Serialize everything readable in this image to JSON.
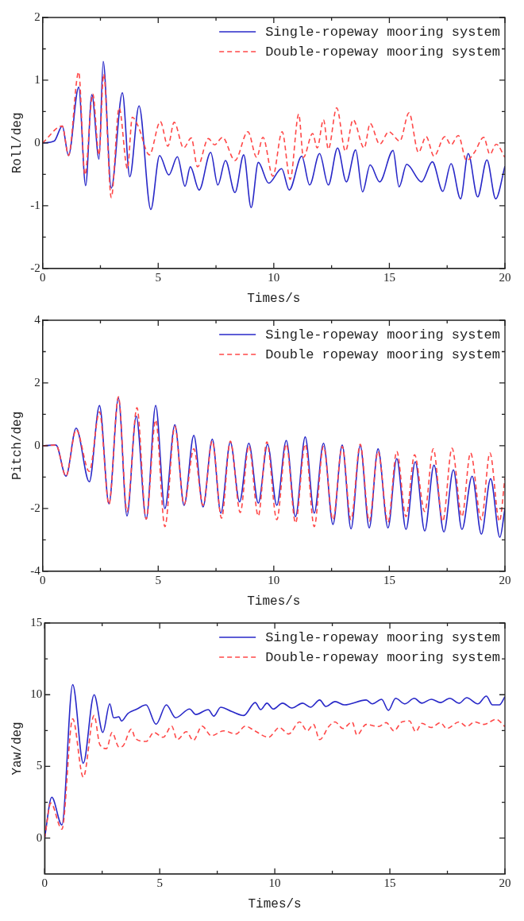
{
  "chart_data": [
    {
      "type": "line",
      "xlabel": "Times/s",
      "ylabel": "Roll/deg",
      "xlim": [
        0,
        20
      ],
      "xticks": [
        0,
        {
          "value": 2.5,
          "label": null
        },
        5,
        {
          "value": 7.5,
          "label": null
        },
        10,
        {
          "value": 12.5,
          "label": null
        },
        15,
        {
          "value": 17.5,
          "label": null
        },
        20
      ],
      "ylim": [
        -2,
        2
      ],
      "yticks": [
        -2,
        {
          "value": -1.5,
          "label": null
        },
        -1,
        {
          "value": -0.5,
          "label": null
        },
        0,
        {
          "value": 0.5,
          "label": null
        },
        1,
        {
          "value": 1.5,
          "label": null
        },
        2
      ],
      "legend": "top right",
      "marker": "none",
      "grid": false,
      "series": [
        {
          "name": "Single-ropeway mooring system",
          "color": "#2828c8",
          "line_style": "solid",
          "x": [
            0,
            0.5,
            0.85,
            1.12,
            1.56,
            1.86,
            2.13,
            2.44,
            2.62,
            2.97,
            3.45,
            3.77,
            4.17,
            4.68,
            5.06,
            5.46,
            5.83,
            6.16,
            6.39,
            6.77,
            7.27,
            7.58,
            7.91,
            8.32,
            8.7,
            9.02,
            9.33,
            9.78,
            10.34,
            10.67,
            11.21,
            11.55,
            11.98,
            12.36,
            12.76,
            13.14,
            13.54,
            13.84,
            14.17,
            14.58,
            15.16,
            15.42,
            15.75,
            16.39,
            16.86,
            17.31,
            17.67,
            18.08,
            18.41,
            18.82,
            19.22,
            19.6,
            20
          ],
          "values": [
            0,
            0.03,
            0.27,
            -0.2,
            0.89,
            -0.68,
            0.77,
            -0.26,
            1.3,
            -0.72,
            0.8,
            -0.54,
            0.59,
            -1.06,
            -0.2,
            -0.51,
            -0.22,
            -0.69,
            -0.38,
            -0.75,
            -0.15,
            -0.67,
            -0.28,
            -0.79,
            -0.19,
            -1.03,
            -0.31,
            -0.64,
            -0.41,
            -0.75,
            -0.21,
            -0.67,
            -0.17,
            -0.67,
            -0.08,
            -0.62,
            -0.11,
            -0.78,
            -0.35,
            -0.62,
            -0.12,
            -0.7,
            -0.34,
            -0.62,
            -0.3,
            -0.77,
            -0.33,
            -0.89,
            -0.17,
            -0.86,
            -0.27,
            -0.89,
            -0.37
          ]
        },
        {
          "name": "Double-ropeway mooring system",
          "color": "#ff4848",
          "line_style": "dashed",
          "x": [
            0,
            0.85,
            1.12,
            1.56,
            1.83,
            2.17,
            2.44,
            2.64,
            2.97,
            3.31,
            3.67,
            3.88,
            4.14,
            4.62,
            5.09,
            5.42,
            5.69,
            6.1,
            6.43,
            6.7,
            7.17,
            7.44,
            7.78,
            8.32,
            8.88,
            9.26,
            9.53,
            9.96,
            10.36,
            10.71,
            11.08,
            11.28,
            11.68,
            11.88,
            12.15,
            12.36,
            12.72,
            13.1,
            13.43,
            13.91,
            14.17,
            14.58,
            14.98,
            15.45,
            15.85,
            16.26,
            16.59,
            16.93,
            17.4,
            17.67,
            17.98,
            18.34,
            18.68,
            19.08,
            19.35,
            19.62,
            20
          ],
          "values": [
            0,
            0.27,
            -0.2,
            1.13,
            -0.51,
            0.78,
            -0.19,
            1.1,
            -0.87,
            0.56,
            -0.41,
            0.41,
            0.26,
            -0.19,
            0.34,
            -0.05,
            0.33,
            -0.08,
            0.08,
            -0.38,
            0.07,
            -0.03,
            0.09,
            -0.28,
            0.18,
            -0.23,
            0.09,
            -0.53,
            0.18,
            -0.58,
            0.46,
            -0.23,
            0.15,
            -0.08,
            0.37,
            -0.1,
            0.56,
            -0.13,
            0.37,
            -0.08,
            0.31,
            -0.02,
            0.18,
            0.03,
            0.48,
            -0.15,
            0.1,
            -0.21,
            0.1,
            -0.03,
            0.12,
            -0.28,
            -0.15,
            0.09,
            -0.18,
            -0.02,
            -0.23
          ]
        }
      ]
    },
    {
      "type": "line",
      "xlabel": "Times/s",
      "ylabel": "Pitch/deg",
      "xlim": [
        0,
        20
      ],
      "xticks": [
        0,
        {
          "value": 2.5,
          "label": null
        },
        5,
        {
          "value": 7.5,
          "label": null
        },
        10,
        {
          "value": 12.5,
          "label": null
        },
        15,
        {
          "value": 17.5,
          "label": null
        },
        20
      ],
      "ylim": [
        -4,
        4
      ],
      "yticks": [
        -4,
        {
          "value": -3,
          "label": null
        },
        -2,
        {
          "value": -1,
          "label": null
        },
        0,
        {
          "value": 1,
          "label": null
        },
        2,
        {
          "value": 3,
          "label": null
        },
        4
      ],
      "legend": "top right",
      "marker": "none",
      "grid": false,
      "series": [
        {
          "name": "Single-ropeway mooring system",
          "color": "#2828c8",
          "line_style": "solid",
          "x": [
            0,
            0.58,
            1.01,
            1.45,
            2.02,
            2.46,
            2.87,
            3.28,
            3.65,
            4.05,
            4.48,
            4.89,
            5.29,
            5.72,
            6.12,
            6.54,
            6.94,
            7.34,
            7.71,
            8.12,
            8.52,
            8.92,
            9.33,
            9.73,
            10.13,
            10.54,
            10.94,
            11.36,
            11.75,
            12.15,
            12.56,
            12.96,
            13.34,
            13.74,
            14.13,
            14.51,
            14.94,
            15.32,
            15.72,
            16.12,
            16.53,
            16.93,
            17.36,
            17.77,
            18.14,
            18.58,
            18.98,
            19.38,
            19.78,
            20
          ],
          "values": [
            0,
            0.02,
            -0.97,
            0.56,
            -1.15,
            1.28,
            -1.85,
            1.52,
            -2.24,
            0.94,
            -2.34,
            1.28,
            -2.0,
            0.67,
            -1.9,
            0.33,
            -1.95,
            0.21,
            -2.15,
            0.12,
            -1.79,
            0.08,
            -1.83,
            0.05,
            -1.9,
            0.17,
            -2.26,
            0.28,
            -2.15,
            0.08,
            -2.51,
            0.02,
            -2.65,
            0,
            -2.62,
            -0.1,
            -2.62,
            -0.41,
            -2.67,
            -0.51,
            -2.72,
            -0.62,
            -2.75,
            -0.77,
            -2.67,
            -0.97,
            -2.82,
            -1.05,
            -2.92,
            -2.0
          ]
        },
        {
          "name": "Double ropeway mooring system",
          "color": "#ff4848",
          "line_style": "dashed",
          "x": [
            0,
            0.58,
            1.01,
            1.45,
            2.02,
            2.46,
            2.87,
            3.28,
            3.65,
            4.08,
            4.48,
            4.89,
            5.29,
            5.72,
            6.12,
            6.54,
            6.94,
            7.34,
            7.74,
            8.12,
            8.55,
            8.92,
            9.33,
            9.7,
            10.13,
            10.54,
            10.94,
            11.36,
            11.75,
            12.15,
            12.56,
            12.96,
            13.34,
            13.74,
            14.13,
            14.51,
            14.94,
            15.32,
            15.72,
            16.09,
            16.53,
            16.9,
            17.31,
            17.71,
            18.14,
            18.51,
            18.98,
            19.35,
            19.76,
            20
          ],
          "values": [
            0,
            0.02,
            -0.97,
            0.51,
            -0.82,
            1.08,
            -1.87,
            1.56,
            -2.1,
            1.21,
            -2.34,
            0.82,
            -2.58,
            0.62,
            -1.87,
            -0.1,
            -1.9,
            0.15,
            -2.31,
            0.15,
            -2.13,
            0,
            -2.24,
            0.12,
            -2.36,
            0.05,
            -2.46,
            0.05,
            -2.58,
            -0.02,
            -2.36,
            -0.02,
            -2.36,
            0.05,
            -2.41,
            -0.18,
            -2.44,
            -0.18,
            -2.26,
            -0.29,
            -2.1,
            -0.1,
            -2.41,
            -0.08,
            -2.26,
            -0.23,
            -2.36,
            -0.23,
            -2.41,
            -1.03
          ]
        }
      ]
    },
    {
      "type": "line",
      "xlabel": "Times/s",
      "ylabel": "Yaw/deg",
      "xlim": [
        0,
        20
      ],
      "xticks": [
        0,
        {
          "value": 2.5,
          "label": null
        },
        5,
        {
          "value": 7.5,
          "label": null
        },
        10,
        {
          "value": 12.5,
          "label": null
        },
        15,
        {
          "value": 17.5,
          "label": null
        },
        20
      ],
      "ylim": [
        -2.5,
        15
      ],
      "yticks": [
        0,
        {
          "value": 2.5,
          "label": null
        },
        5,
        {
          "value": 7.5,
          "label": null
        },
        10,
        {
          "value": 12.5,
          "label": null
        },
        15
      ],
      "legend": "top right",
      "marker": "none",
      "grid": false,
      "series": [
        {
          "name": "Single-ropeway mooring system",
          "color": "#2828c8",
          "line_style": "solid",
          "x": [
            0,
            0.31,
            0.75,
            1.22,
            1.68,
            2.15,
            2.53,
            2.83,
            3.0,
            3.23,
            3.34,
            3.61,
            4.01,
            4.41,
            4.84,
            5.29,
            5.69,
            6.3,
            6.57,
            7.11,
            7.35,
            7.65,
            8.12,
            8.65,
            9.15,
            9.39,
            9.66,
            9.93,
            10.34,
            10.74,
            11.21,
            11.55,
            11.95,
            12.22,
            12.62,
            13.03,
            13.97,
            14.24,
            14.64,
            14.94,
            15.25,
            15.65,
            16.06,
            16.39,
            16.8,
            17.2,
            17.6,
            18.01,
            18.34,
            18.82,
            19.19,
            19.46,
            19.76,
            20
          ],
          "values": [
            0,
            2.85,
            0.92,
            10.7,
            5.22,
            10.0,
            7.37,
            9.36,
            8.39,
            8.46,
            8.16,
            8.68,
            9.0,
            9.29,
            7.94,
            9.29,
            8.39,
            9.0,
            8.62,
            8.96,
            8.51,
            9.13,
            8.84,
            8.55,
            9.45,
            8.96,
            9.41,
            9.0,
            9.41,
            9.07,
            9.41,
            9.13,
            9.63,
            9.18,
            9.52,
            9.29,
            9.63,
            9.36,
            9.68,
            8.91,
            9.75,
            9.36,
            9.75,
            9.41,
            9.68,
            9.45,
            9.75,
            9.41,
            9.79,
            9.36,
            9.9,
            9.29,
            9.29,
            9.86
          ]
        },
        {
          "name": "Double-ropeway mooring system",
          "color": "#ff4848",
          "line_style": "dashed",
          "x": [
            0,
            0.27,
            0.75,
            1.22,
            1.68,
            2.15,
            2.4,
            2.69,
            2.93,
            3.23,
            3.4,
            3.77,
            3.94,
            4.41,
            4.75,
            5.15,
            5.52,
            5.76,
            6.16,
            6.46,
            6.84,
            7.24,
            7.78,
            8.32,
            8.72,
            9.13,
            9.73,
            10.2,
            10.6,
            11.08,
            11.41,
            11.68,
            11.95,
            12.36,
            12.62,
            12.96,
            13.36,
            13.57,
            13.97,
            14.51,
            14.84,
            15.18,
            15.52,
            15.85,
            16.12,
            16.39,
            16.8,
            17.2,
            17.47,
            18.01,
            18.34,
            18.68,
            19.08,
            19.62,
            20
          ],
          "values": [
            0,
            2.44,
            0.62,
            8.32,
            4.25,
            8.55,
            6.51,
            6.24,
            7.37,
            6.35,
            6.42,
            7.6,
            6.96,
            6.74,
            7.37,
            7.03,
            7.81,
            6.87,
            7.42,
            6.81,
            7.81,
            7.14,
            7.48,
            7.26,
            7.81,
            7.48,
            7.03,
            7.71,
            7.26,
            8.1,
            7.48,
            7.93,
            6.87,
            7.81,
            8.1,
            7.64,
            8.1,
            7.19,
            7.93,
            7.78,
            8.05,
            7.48,
            8.1,
            8.17,
            7.42,
            8.0,
            7.71,
            8.05,
            7.64,
            8.1,
            7.78,
            8.1,
            7.93,
            8.28,
            7.78
          ]
        }
      ]
    }
  ]
}
